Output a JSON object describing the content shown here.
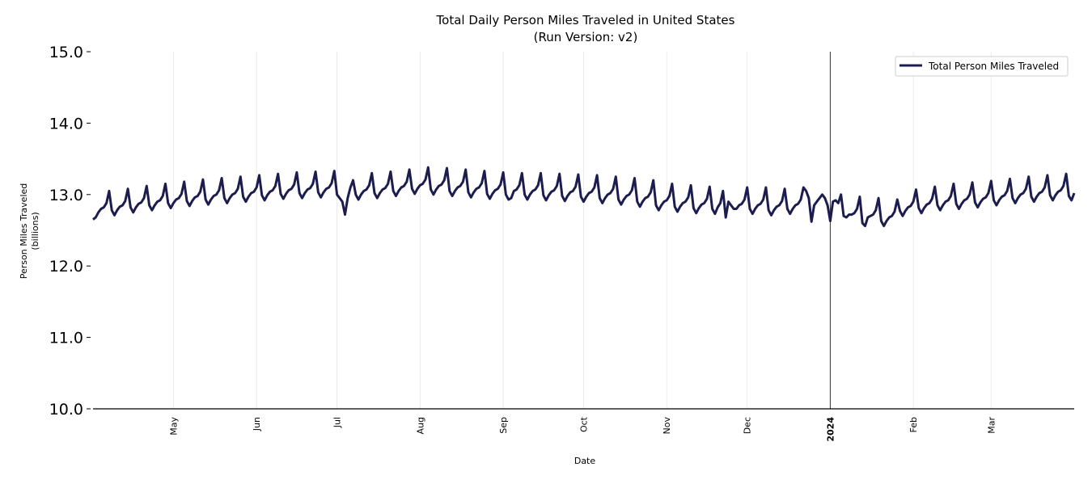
{
  "chart_data": {
    "type": "line",
    "title": "Total Daily Person Miles Traveled in United States",
    "subtitle": "(Run Version: v2)",
    "xlabel": "Date",
    "ylabel": "Person Miles Traveled",
    "ylabel_unit": "(billions)",
    "xlim": [
      "2023-04-01",
      "2024-04-01"
    ],
    "ylim": [
      10.0,
      15.0
    ],
    "yticks": [
      "10.0",
      "11.0",
      "12.0",
      "13.0",
      "14.0",
      "15.0"
    ],
    "xticks": [
      {
        "date": "2023-05-01",
        "label": "May",
        "bold": false
      },
      {
        "date": "2023-06-01",
        "label": "Jun",
        "bold": false
      },
      {
        "date": "2023-07-01",
        "label": "Jul",
        "bold": false
      },
      {
        "date": "2023-08-01",
        "label": "Aug",
        "bold": false
      },
      {
        "date": "2023-09-01",
        "label": "Sep",
        "bold": false
      },
      {
        "date": "2023-10-01",
        "label": "Oct",
        "bold": false
      },
      {
        "date": "2023-11-01",
        "label": "Nov",
        "bold": false
      },
      {
        "date": "2023-12-01",
        "label": "Dec",
        "bold": false
      },
      {
        "date": "2024-01-01",
        "label": "2024",
        "bold": true
      },
      {
        "date": "2024-02-01",
        "label": "Feb",
        "bold": false
      },
      {
        "date": "2024-03-01",
        "label": "Mar",
        "bold": false
      }
    ],
    "vertical_marker": "2024-01-01",
    "grid": "vertical",
    "legend": "top-right",
    "series": [
      {
        "name": "Total Person Miles Traveled",
        "color": "#1c1c4e",
        "start_date": "2023-04-01",
        "frequency": "daily",
        "values": [
          12.65,
          12.68,
          12.75,
          12.8,
          12.82,
          12.88,
          13.05,
          12.78,
          12.71,
          12.78,
          12.83,
          12.85,
          12.91,
          13.08,
          12.82,
          12.75,
          12.82,
          12.87,
          12.89,
          12.95,
          13.12,
          12.85,
          12.78,
          12.85,
          12.9,
          12.92,
          12.98,
          13.15,
          12.88,
          12.81,
          12.88,
          12.93,
          12.95,
          13.01,
          13.18,
          12.91,
          12.84,
          12.91,
          12.96,
          12.98,
          13.04,
          13.21,
          12.93,
          12.86,
          12.93,
          12.98,
          13.0,
          13.06,
          13.23,
          12.95,
          12.88,
          12.95,
          13.0,
          13.02,
          13.08,
          13.25,
          12.97,
          12.9,
          12.97,
          13.02,
          13.04,
          13.1,
          13.27,
          12.99,
          12.92,
          12.99,
          13.04,
          13.06,
          13.12,
          13.29,
          13.01,
          12.94,
          13.01,
          13.06,
          13.08,
          13.14,
          13.31,
          13.02,
          12.95,
          13.02,
          13.07,
          13.09,
          13.15,
          13.32,
          13.03,
          12.96,
          13.03,
          13.08,
          13.1,
          13.16,
          13.33,
          13.0,
          12.95,
          12.9,
          12.72,
          12.95,
          13.1,
          13.2,
          13.0,
          12.93,
          13.0,
          13.05,
          13.07,
          13.13,
          13.3,
          13.02,
          12.95,
          13.02,
          13.07,
          13.09,
          13.15,
          13.32,
          13.05,
          12.98,
          13.05,
          13.1,
          13.12,
          13.18,
          13.35,
          13.08,
          13.01,
          13.08,
          13.13,
          13.15,
          13.21,
          13.38,
          13.07,
          13.0,
          13.07,
          13.12,
          13.14,
          13.2,
          13.37,
          13.05,
          12.98,
          13.05,
          13.1,
          13.12,
          13.18,
          13.35,
          13.03,
          12.96,
          13.03,
          13.08,
          13.1,
          13.16,
          13.33,
          13.01,
          12.94,
          13.01,
          13.06,
          13.08,
          13.14,
          13.31,
          13.0,
          12.93,
          12.95,
          13.05,
          13.07,
          13.13,
          13.3,
          13.0,
          12.93,
          13.0,
          13.05,
          13.07,
          13.13,
          13.3,
          12.99,
          12.92,
          12.99,
          13.04,
          13.06,
          13.12,
          13.29,
          12.98,
          12.91,
          12.98,
          13.03,
          13.05,
          13.11,
          13.28,
          12.97,
          12.9,
          12.97,
          13.02,
          13.04,
          13.1,
          13.27,
          12.95,
          12.88,
          12.95,
          13.0,
          13.02,
          13.08,
          13.25,
          12.93,
          12.86,
          12.93,
          12.98,
          13.0,
          13.06,
          13.23,
          12.9,
          12.83,
          12.9,
          12.95,
          12.97,
          13.03,
          13.2,
          12.85,
          12.78,
          12.85,
          12.9,
          12.92,
          12.98,
          13.15,
          12.83,
          12.76,
          12.83,
          12.88,
          12.9,
          12.96,
          13.13,
          12.81,
          12.74,
          12.81,
          12.86,
          12.88,
          12.94,
          13.11,
          12.8,
          12.73,
          12.82,
          12.88,
          13.05,
          12.68,
          12.9,
          12.85,
          12.8,
          12.8,
          12.85,
          12.87,
          12.93,
          13.1,
          12.8,
          12.73,
          12.8,
          12.85,
          12.87,
          12.93,
          13.1,
          12.78,
          12.71,
          12.78,
          12.83,
          12.85,
          12.91,
          13.08,
          12.8,
          12.73,
          12.8,
          12.85,
          12.87,
          12.93,
          13.1,
          13.05,
          12.95,
          12.62,
          12.85,
          12.9,
          12.95,
          13.0,
          12.95,
          12.85,
          12.63,
          12.9,
          12.92,
          12.88,
          13.0,
          12.7,
          12.68,
          12.72,
          12.72,
          12.74,
          12.8,
          12.97,
          12.6,
          12.56,
          12.68,
          12.7,
          12.72,
          12.78,
          12.95,
          12.63,
          12.56,
          12.63,
          12.68,
          12.7,
          12.76,
          12.93,
          12.77,
          12.7,
          12.77,
          12.82,
          12.84,
          12.9,
          13.07,
          12.81,
          12.74,
          12.81,
          12.86,
          12.88,
          12.94,
          13.11,
          12.85,
          12.78,
          12.85,
          12.9,
          12.92,
          12.98,
          13.15,
          12.87,
          12.8,
          12.87,
          12.92,
          12.94,
          13.0,
          13.17,
          12.89,
          12.82,
          12.89,
          12.94,
          12.96,
          13.02,
          13.19,
          12.92,
          12.85,
          12.92,
          12.97,
          12.99,
          13.05,
          13.22,
          12.95,
          12.88,
          12.95,
          13.0,
          13.02,
          13.08,
          13.25,
          12.97,
          12.9,
          12.97,
          13.02,
          13.04,
          13.1,
          13.27,
          12.99,
          12.92,
          12.99,
          13.04,
          13.06,
          13.12,
          13.29,
          12.98,
          12.92,
          13.02
        ]
      }
    ]
  }
}
